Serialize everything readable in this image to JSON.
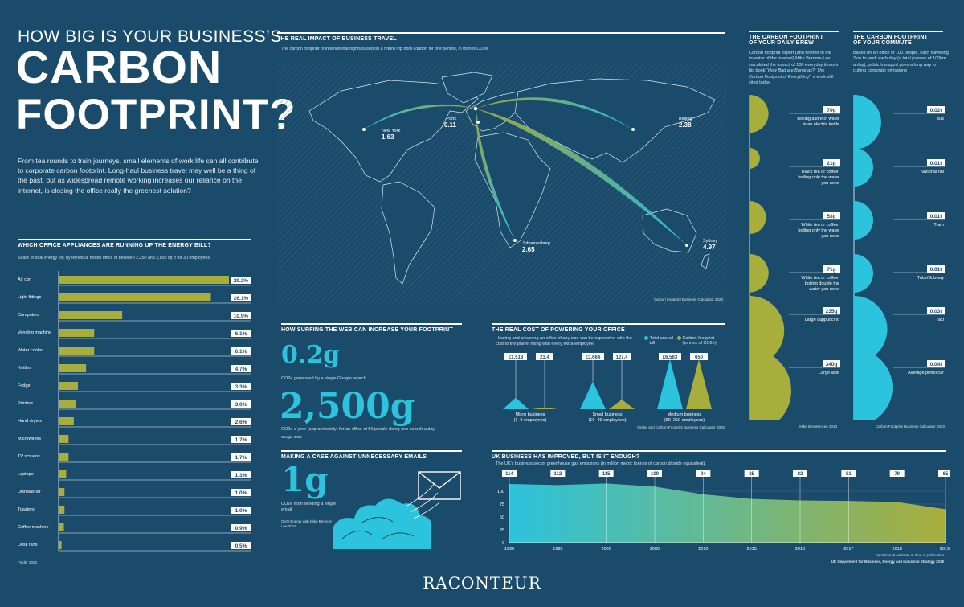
{
  "intro": {
    "line1": "HOW BIG IS YOUR BUSINESS’S",
    "line2": "CARBON",
    "line3": "FOOTPRINT?",
    "body": "From tea rounds to train journeys, small elements of work life can all contribute to corporate carbon footprint. Long-haul business travel may well be a thing of the past, but as widespread remote working increases our reliance on the internet, is closing the office really the greenest solution?"
  },
  "appliances": {
    "title": "WHICH OFFICE APPLIANCES ARE RUNNING UP THE ENERGY BILL?",
    "subtitle": "Share of total energy bill; hypothetical model office of between 2,250 and 2,850 sq ft for 30 employees",
    "source": "Finder 2020"
  },
  "travel": {
    "title": "THE REAL IMPACT OF BUSINESS TRAVEL",
    "subtitle": "The carbon footprint of international flights based on a return trip from London for one person, in tonnes CO2e",
    "source": "Carbon Footprint Business Calculator 2020"
  },
  "surfing": {
    "title": "HOW SURFING THE WEB CAN INCREASE YOUR FOOTPRINT",
    "stat1": "0.2g",
    "stat1_text": "CO2e generated by a single Google search",
    "stat1_src": "Google 2020",
    "stat2": "2,500g",
    "stat2_text": "CO2e a year (approximately) for an office of 50 people doing one search a day"
  },
  "emails": {
    "title": "MAKING A CASE AGAINST UNNECESSARY EMAILS",
    "stat": "1g",
    "stat_text": "CO2e from sending a single email",
    "source": "OVO Energy with Mike Berners-Lee 2019"
  },
  "power": {
    "title": "THE REAL COST OF POWERING YOUR OFFICE",
    "subtitle": "Heating and powering an office of any size can be expensive, with the cost to the planet rising with every extra employee",
    "legend_bill": "Total annual bill",
    "legend_carbon": "Carbon footprint (tonnes of CO2e)",
    "source": "Finder and Carbon Footprint Business Calculator 2020"
  },
  "brew": {
    "title1": "THE CARBON FOOTPRINT",
    "title2": "OF YOUR DAILY BREW",
    "intro_a": "Carbon footprint expert (and brother to the inventor of the internet) Mike Berners-Lee calculated the impact of 100 everyday items in his book ",
    "intro_b": "“How Bad are Bananas?: The Carbon Footprint of Everything”",
    "intro_c": ", a work still cited today",
    "source": "Mike Berners-Lee 2010"
  },
  "commute": {
    "title1": "THE CARBON FOOTPRINT",
    "title2": "OF YOUR COMMUTE",
    "intro": "Based on an office of 100 people, each travelling 2km to work each day (a total journey of 100km a day), public transport goes a long way to cutting corporate emissions",
    "source": "Carbon Footprint Business Calculator 2020"
  },
  "uk": {
    "title": "UK BUSINESS HAS IMPROVED, BUT IS IT ENOUGH?",
    "subtitle": "The UK’s business sector greenhouse gas emissions (in million metric tonnes of carbon dioxide equivalent).",
    "note": "*provisional estimate at time of publication",
    "source": "UK Department for Business, Energy and Industrial Strategy 2019"
  },
  "brand": "RACONTEUR",
  "colors": {
    "bg": "#1b4b6b",
    "olive": "#a8ae3c",
    "cyan": "#2cc3dc"
  },
  "chart_data": [
    {
      "type": "bar",
      "title": "WHICH OFFICE APPLIANCES ARE RUNNING UP THE ENERGY BILL?",
      "categories": [
        "Air con",
        "Light fittings",
        "Computers",
        "Vending machine",
        "Water cooler",
        "Kettles",
        "Fridge",
        "Printers",
        "Hand dryers",
        "Microwaves",
        "TV screens",
        "Laptops",
        "Dishwasher",
        "Toasters",
        "Coffee machine",
        "Desk fans"
      ],
      "values": [
        29.2,
        26.1,
        10.9,
        6.1,
        6.1,
        4.7,
        3.3,
        3.0,
        2.6,
        1.7,
        1.7,
        1.3,
        1.0,
        1.0,
        0.9,
        0.5
      ],
      "labels": [
        "29.2%",
        "26.1%",
        "10.9%",
        "6.1%",
        "6.1%",
        "4.7%",
        "3.3%",
        "3.0%",
        "2.6%",
        "1.7%",
        "1.7%",
        "1.3%",
        "1.0%",
        "1.0%",
        "0.9%",
        "0.5%"
      ],
      "orientation": "horizontal"
    },
    {
      "type": "map",
      "title": "THE REAL IMPACT OF BUSINESS TRAVEL",
      "origin": "London",
      "routes": [
        {
          "city": "New York",
          "value": 1.63,
          "label": "1.63"
        },
        {
          "city": "Paris",
          "value": 0.11,
          "label": "0.11"
        },
        {
          "city": "Beijing",
          "value": 2.38,
          "label": "2.38"
        },
        {
          "city": "Johannesburg",
          "value": 2.65,
          "label": "2.65"
        },
        {
          "city": "Sydney",
          "value": 4.97,
          "label": "4.97"
        }
      ]
    },
    {
      "type": "bar",
      "title": "THE REAL COST OF POWERING YOUR OFFICE",
      "categories": [
        "Micro business (1–9 employees)",
        "Small business (10–49 employees)",
        "Medium business (50–250 employees)"
      ],
      "cat_lines": [
        [
          "Micro business",
          "(1–9 employees)"
        ],
        [
          "Small business",
          "(10–49 employees)"
        ],
        [
          "Medium business",
          "(50–250 employees)"
        ]
      ],
      "series": [
        {
          "name": "Total annual bill",
          "values": [
            1518,
            3664,
            6563
          ],
          "labels": [
            "£1,518",
            "£3,664",
            "£6,563"
          ]
        },
        {
          "name": "Carbon footprint (tonnes of CO2e)",
          "values": [
            23.4,
            127.4,
            650
          ],
          "labels": [
            "23.4",
            "127.4",
            "650"
          ]
        }
      ]
    },
    {
      "type": "bar",
      "title": "THE CARBON FOOTPRINT OF YOUR DAILY BREW",
      "categories": [
        "Boiling a litre of water in an electric kettle",
        "Black tea or coffee, boiling only the water you need",
        "White tea or coffee, boiling only the water you need",
        "White tea or coffee, boiling double the water you need",
        "Large cappuccino",
        "Large latte"
      ],
      "cat_lines": [
        [
          "Boiling a litre of water",
          "in an electric kettle"
        ],
        [
          "Black tea or coffee,",
          "boiling only the water",
          "you need"
        ],
        [
          "White tea or coffee,",
          "boiling only the water",
          "you need"
        ],
        [
          "White tea or coffee,",
          "boiling double the",
          "water you need"
        ],
        [
          "Large cappuccino"
        ],
        [
          "Large latte"
        ]
      ],
      "values": [
        70,
        21,
        53,
        71,
        235,
        340
      ],
      "labels": [
        "70g",
        "21g",
        "53g",
        "71g",
        "235g",
        "340g"
      ]
    },
    {
      "type": "bar",
      "title": "THE CARBON FOOTPRINT OF YOUR COMMUTE",
      "categories": [
        "Bus",
        "National rail",
        "Tram",
        "Tube/Subway",
        "Taxi",
        "Average petrol car"
      ],
      "values": [
        0.02,
        0.01,
        0.01,
        0.01,
        0.03,
        0.04
      ],
      "labels": [
        "0.02t",
        "0.01t",
        "0.01t",
        "0.01t",
        "0.03t",
        "0.04t"
      ]
    },
    {
      "type": "area",
      "title": "UK BUSINESS HAS IMPROVED, BUT IS IT ENOUGH?",
      "x": [
        "1990",
        "1995",
        "2000",
        "2005",
        "2010",
        "2015",
        "2016",
        "2017",
        "2018",
        "2019*"
      ],
      "values": [
        114,
        112,
        115,
        109,
        94,
        85,
        82,
        81,
        79,
        65
      ],
      "ylim": [
        0,
        125
      ],
      "yticks": [
        0,
        25,
        50,
        75,
        100
      ]
    }
  ]
}
